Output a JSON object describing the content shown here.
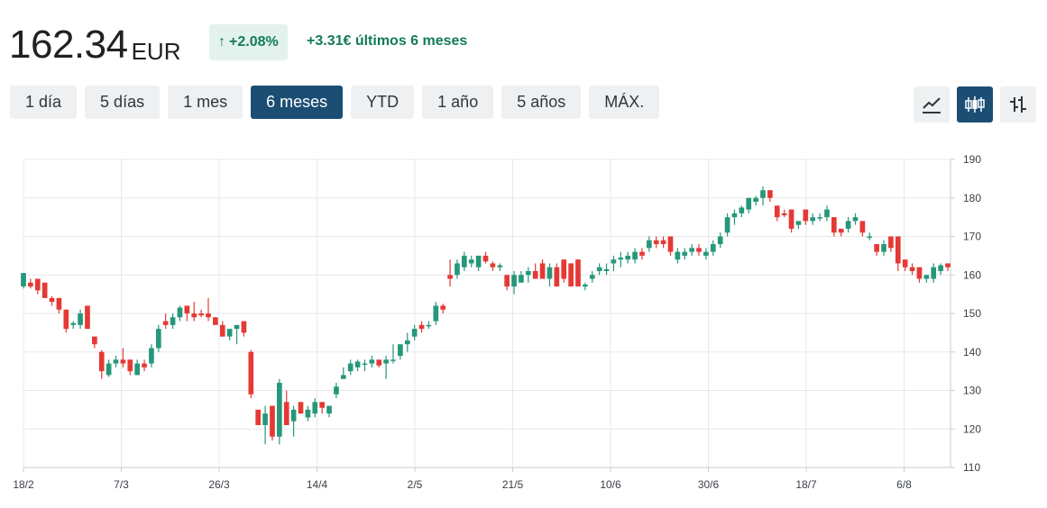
{
  "header": {
    "price": "162.34",
    "currency": "EUR",
    "change_pct": "+2.08%",
    "change_abs": "+3.31€ últimos 6 meses"
  },
  "ranges": [
    "1 día",
    "5 días",
    "1 mes",
    "6 meses",
    "YTD",
    "1 año",
    "5 años",
    "MÁX."
  ],
  "active_range": "6 meses",
  "chart_types": [
    "line-chart-icon",
    "candlestick-icon",
    "ohlc-icon"
  ],
  "active_chart_type": "candlestick-icon",
  "colors": {
    "up": "#26977a",
    "down": "#e53935",
    "accent": "#1c4e74",
    "positive_text": "#137a5a"
  },
  "chart_data": {
    "type": "candlestick",
    "y_ticks": [
      110,
      120,
      130,
      140,
      150,
      160,
      170,
      180,
      190
    ],
    "ylim": [
      110,
      190
    ],
    "x_tick_labels": [
      "18/2",
      "7/3",
      "26/3",
      "14/4",
      "2/5",
      "21/5",
      "10/6",
      "30/6",
      "18/7",
      "6/8"
    ],
    "grid": true,
    "candles": [
      {
        "o": 157,
        "h": 160.5,
        "l": 156.5,
        "c": 160.5
      },
      {
        "o": 158,
        "h": 159,
        "l": 156.5,
        "c": 157
      },
      {
        "o": 159,
        "h": 159,
        "l": 155,
        "c": 156
      },
      {
        "o": 158,
        "h": 158,
        "l": 154,
        "c": 154
      },
      {
        "o": 154,
        "h": 154.5,
        "l": 152,
        "c": 153
      },
      {
        "o": 154,
        "h": 154,
        "l": 150,
        "c": 151
      },
      {
        "o": 151,
        "h": 151,
        "l": 145,
        "c": 146
      },
      {
        "o": 147,
        "h": 148,
        "l": 146,
        "c": 147.5
      },
      {
        "o": 147,
        "h": 151,
        "l": 146,
        "c": 150
      },
      {
        "o": 152,
        "h": 152,
        "l": 146,
        "c": 146
      },
      {
        "o": 144,
        "h": 144,
        "l": 141,
        "c": 142
      },
      {
        "o": 140,
        "h": 140.5,
        "l": 133,
        "c": 135
      },
      {
        "o": 134,
        "h": 138,
        "l": 133.5,
        "c": 137
      },
      {
        "o": 137,
        "h": 139,
        "l": 136,
        "c": 138
      },
      {
        "o": 138,
        "h": 141,
        "l": 136,
        "c": 137
      },
      {
        "o": 138,
        "h": 138,
        "l": 134,
        "c": 135
      },
      {
        "o": 134,
        "h": 138,
        "l": 134,
        "c": 137
      },
      {
        "o": 137,
        "h": 138,
        "l": 135,
        "c": 136
      },
      {
        "o": 137,
        "h": 142,
        "l": 136,
        "c": 141
      },
      {
        "o": 141,
        "h": 147,
        "l": 140,
        "c": 146
      },
      {
        "o": 148,
        "h": 150,
        "l": 146,
        "c": 147
      },
      {
        "o": 147,
        "h": 150,
        "l": 146,
        "c": 149
      },
      {
        "o": 149,
        "h": 152,
        "l": 148,
        "c": 151.5
      },
      {
        "o": 152,
        "h": 152,
        "l": 148,
        "c": 150
      },
      {
        "o": 150,
        "h": 153,
        "l": 148,
        "c": 149
      },
      {
        "o": 150,
        "h": 151,
        "l": 149,
        "c": 149.5
      },
      {
        "o": 150,
        "h": 154,
        "l": 148,
        "c": 149
      },
      {
        "o": 149,
        "h": 149,
        "l": 147,
        "c": 147
      },
      {
        "o": 147,
        "h": 148,
        "l": 144,
        "c": 144
      },
      {
        "o": 144,
        "h": 146,
        "l": 143,
        "c": 146
      },
      {
        "o": 146,
        "h": 147,
        "l": 142,
        "c": 147
      },
      {
        "o": 148,
        "h": 148,
        "l": 144,
        "c": 145
      },
      {
        "o": 140,
        "h": 140.5,
        "l": 128,
        "c": 129
      },
      {
        "o": 125,
        "h": 125,
        "l": 121,
        "c": 121
      },
      {
        "o": 121,
        "h": 126,
        "l": 116,
        "c": 124
      },
      {
        "o": 126,
        "h": 126,
        "l": 117,
        "c": 118
      },
      {
        "o": 118,
        "h": 133,
        "l": 116,
        "c": 132
      },
      {
        "o": 127,
        "h": 130,
        "l": 121,
        "c": 121
      },
      {
        "o": 122,
        "h": 126,
        "l": 118,
        "c": 125
      },
      {
        "o": 127,
        "h": 127,
        "l": 124,
        "c": 124
      },
      {
        "o": 123,
        "h": 126,
        "l": 122,
        "c": 125
      },
      {
        "o": 124,
        "h": 128,
        "l": 123,
        "c": 127
      },
      {
        "o": 127,
        "h": 127,
        "l": 124,
        "c": 125.5
      },
      {
        "o": 124,
        "h": 126,
        "l": 123,
        "c": 126
      },
      {
        "o": 129,
        "h": 132,
        "l": 128,
        "c": 131
      },
      {
        "o": 133,
        "h": 136,
        "l": 133,
        "c": 134
      },
      {
        "o": 135,
        "h": 138,
        "l": 134,
        "c": 137
      },
      {
        "o": 136,
        "h": 138,
        "l": 135,
        "c": 137.5
      },
      {
        "o": 137,
        "h": 138,
        "l": 135,
        "c": 137
      },
      {
        "o": 137,
        "h": 139,
        "l": 136,
        "c": 138
      },
      {
        "o": 138,
        "h": 138,
        "l": 136,
        "c": 136.5
      },
      {
        "o": 137,
        "h": 139,
        "l": 133,
        "c": 138
      },
      {
        "o": 138,
        "h": 142,
        "l": 137,
        "c": 138
      },
      {
        "o": 139,
        "h": 142,
        "l": 138,
        "c": 142
      },
      {
        "o": 142,
        "h": 145,
        "l": 140,
        "c": 143
      },
      {
        "o": 144,
        "h": 147,
        "l": 143,
        "c": 146
      },
      {
        "o": 147,
        "h": 148,
        "l": 145,
        "c": 146
      },
      {
        "o": 147,
        "h": 148,
        "l": 146,
        "c": 147
      },
      {
        "o": 148,
        "h": 153,
        "l": 147,
        "c": 152
      },
      {
        "o": 152,
        "h": 152.5,
        "l": 150,
        "c": 151
      },
      {
        "o": 160,
        "h": 164,
        "l": 157,
        "c": 159
      },
      {
        "o": 160,
        "h": 164,
        "l": 159,
        "c": 163
      },
      {
        "o": 162,
        "h": 166,
        "l": 161,
        "c": 165
      },
      {
        "o": 163,
        "h": 165,
        "l": 162,
        "c": 164
      },
      {
        "o": 162,
        "h": 165,
        "l": 161,
        "c": 165
      },
      {
        "o": 165,
        "h": 166,
        "l": 163,
        "c": 163.5
      },
      {
        "o": 163,
        "h": 163.5,
        "l": 161,
        "c": 162
      },
      {
        "o": 162,
        "h": 163,
        "l": 161,
        "c": 162.5
      },
      {
        "o": 160,
        "h": 160,
        "l": 156,
        "c": 157
      },
      {
        "o": 157,
        "h": 161,
        "l": 155,
        "c": 160
      },
      {
        "o": 158,
        "h": 161,
        "l": 158,
        "c": 160
      },
      {
        "o": 160,
        "h": 162,
        "l": 158,
        "c": 161
      },
      {
        "o": 161,
        "h": 163,
        "l": 159,
        "c": 159
      },
      {
        "o": 163,
        "h": 164,
        "l": 159,
        "c": 159
      },
      {
        "o": 159,
        "h": 163,
        "l": 157,
        "c": 162
      },
      {
        "o": 162,
        "h": 163,
        "l": 157,
        "c": 157
      },
      {
        "o": 164,
        "h": 164,
        "l": 158,
        "c": 159
      },
      {
        "o": 163,
        "h": 163,
        "l": 157,
        "c": 157
      },
      {
        "o": 164,
        "h": 164,
        "l": 157,
        "c": 157
      },
      {
        "o": 157,
        "h": 158,
        "l": 156,
        "c": 157.5
      },
      {
        "o": 159,
        "h": 161,
        "l": 158,
        "c": 160
      },
      {
        "o": 161,
        "h": 163,
        "l": 160,
        "c": 162
      },
      {
        "o": 161,
        "h": 163,
        "l": 160,
        "c": 161.5
      },
      {
        "o": 163,
        "h": 165,
        "l": 161,
        "c": 164
      },
      {
        "o": 164,
        "h": 166,
        "l": 162,
        "c": 164.5
      },
      {
        "o": 164,
        "h": 166,
        "l": 163,
        "c": 165
      },
      {
        "o": 164,
        "h": 167,
        "l": 163,
        "c": 166
      },
      {
        "o": 166,
        "h": 167,
        "l": 164,
        "c": 165
      },
      {
        "o": 167,
        "h": 170,
        "l": 166,
        "c": 169
      },
      {
        "o": 169,
        "h": 170,
        "l": 167,
        "c": 168
      },
      {
        "o": 169,
        "h": 170,
        "l": 167,
        "c": 168
      },
      {
        "o": 170,
        "h": 170,
        "l": 165,
        "c": 166
      },
      {
        "o": 164,
        "h": 167,
        "l": 163,
        "c": 166
      },
      {
        "o": 165,
        "h": 167,
        "l": 164,
        "c": 166
      },
      {
        "o": 166,
        "h": 168,
        "l": 165,
        "c": 167
      },
      {
        "o": 167,
        "h": 168,
        "l": 165,
        "c": 166
      },
      {
        "o": 165,
        "h": 167,
        "l": 164,
        "c": 166
      },
      {
        "o": 166,
        "h": 169,
        "l": 165,
        "c": 168
      },
      {
        "o": 168,
        "h": 171,
        "l": 167,
        "c": 170
      },
      {
        "o": 171,
        "h": 176,
        "l": 170,
        "c": 175
      },
      {
        "o": 175,
        "h": 177,
        "l": 173,
        "c": 176
      },
      {
        "o": 176,
        "h": 178,
        "l": 175,
        "c": 177.5
      },
      {
        "o": 177,
        "h": 180,
        "l": 176,
        "c": 180
      },
      {
        "o": 179,
        "h": 180.5,
        "l": 178,
        "c": 180
      },
      {
        "o": 180,
        "h": 183,
        "l": 178,
        "c": 182
      },
      {
        "o": 182,
        "h": 182,
        "l": 179,
        "c": 180
      },
      {
        "o": 178,
        "h": 178,
        "l": 174,
        "c": 175
      },
      {
        "o": 176,
        "h": 177,
        "l": 175,
        "c": 175.5
      },
      {
        "o": 177,
        "h": 177,
        "l": 171,
        "c": 172
      },
      {
        "o": 173,
        "h": 174,
        "l": 172,
        "c": 174
      },
      {
        "o": 177,
        "h": 177,
        "l": 173,
        "c": 174
      },
      {
        "o": 174,
        "h": 176,
        "l": 173,
        "c": 175
      },
      {
        "o": 175,
        "h": 176,
        "l": 174,
        "c": 175
      },
      {
        "o": 175,
        "h": 178,
        "l": 174,
        "c": 177
      },
      {
        "o": 175,
        "h": 175,
        "l": 170,
        "c": 171
      },
      {
        "o": 172,
        "h": 172,
        "l": 170,
        "c": 171
      },
      {
        "o": 172,
        "h": 175,
        "l": 171,
        "c": 174
      },
      {
        "o": 174,
        "h": 176,
        "l": 173,
        "c": 175
      },
      {
        "o": 174,
        "h": 174,
        "l": 170,
        "c": 171
      },
      {
        "o": 170,
        "h": 171,
        "l": 169,
        "c": 170
      },
      {
        "o": 168,
        "h": 168,
        "l": 165,
        "c": 166
      },
      {
        "o": 166,
        "h": 169,
        "l": 165,
        "c": 168
      },
      {
        "o": 170,
        "h": 170,
        "l": 166,
        "c": 167
      },
      {
        "o": 170,
        "h": 170,
        "l": 161,
        "c": 163
      },
      {
        "o": 164,
        "h": 164,
        "l": 161,
        "c": 162
      },
      {
        "o": 162,
        "h": 163,
        "l": 160,
        "c": 161
      },
      {
        "o": 162,
        "h": 162,
        "l": 158,
        "c": 159
      },
      {
        "o": 159,
        "h": 160,
        "l": 158,
        "c": 160
      },
      {
        "o": 159,
        "h": 163,
        "l": 158,
        "c": 162
      },
      {
        "o": 161,
        "h": 163,
        "l": 160,
        "c": 162.5
      },
      {
        "o": 163,
        "h": 163,
        "l": 161,
        "c": 162
      }
    ]
  }
}
